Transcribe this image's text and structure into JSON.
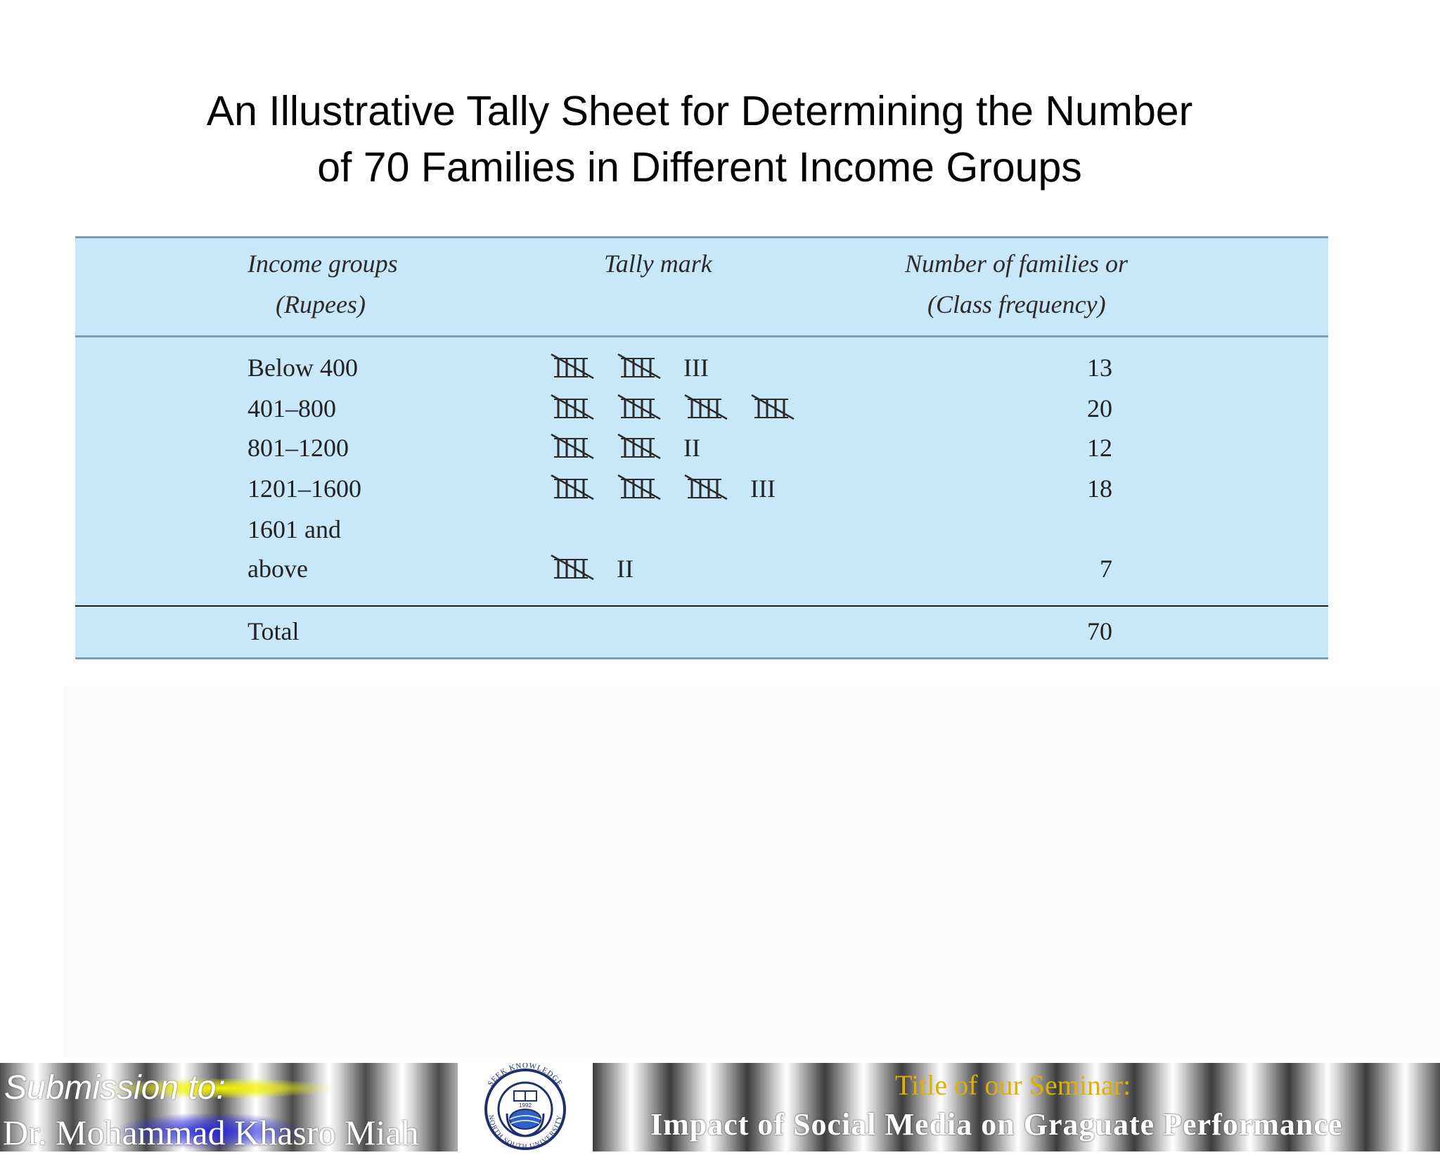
{
  "slide": {
    "title_line1": "An Illustrative Tally Sheet for Determining the Number",
    "title_line2": "of 70 Families in Different Income Groups"
  },
  "table": {
    "headers": {
      "income_line1": "Income groups",
      "income_line2": "(Rupees)",
      "tally": "Tally mark",
      "number_line1": "Number of families or",
      "number_line2": "(Class  frequency)"
    },
    "rows": [
      {
        "group": "Below 400",
        "tally_fives": 2,
        "tally_ones": 3,
        "ones_text": "III",
        "frequency": "13"
      },
      {
        "group": "401–800",
        "tally_fives": 4,
        "tally_ones": 0,
        "ones_text": "",
        "frequency": "20"
      },
      {
        "group": "801–1200",
        "tally_fives": 2,
        "tally_ones": 2,
        "ones_text": "II",
        "frequency": "12"
      },
      {
        "group": "1201–1600",
        "tally_fives": 3,
        "tally_ones": 3,
        "ones_text": "III",
        "frequency": "18"
      },
      {
        "group_line1": "1601 and",
        "group_line2": "above",
        "tally_fives": 1,
        "tally_ones": 2,
        "ones_text": "II",
        "frequency": "7"
      }
    ],
    "total_label": "Total",
    "total_value": "70"
  },
  "footer": {
    "submission_label": "Submission to:",
    "supervisor": "Dr. Mohammad Khasro Miah",
    "seminar_label": "Title of our Seminar:",
    "seminar_title": "Impact of Social Media on Graguate Performance",
    "logo_text_top": "SEEK KNOWLEDGE",
    "logo_text_bottom": "NORTH SOUTH UNIVERSITY",
    "logo_year": "1992",
    "logo_icon": "university-seal-icon"
  },
  "colors": {
    "table_bg": "#c8e7f8",
    "seminar_label": "#e0b000"
  }
}
